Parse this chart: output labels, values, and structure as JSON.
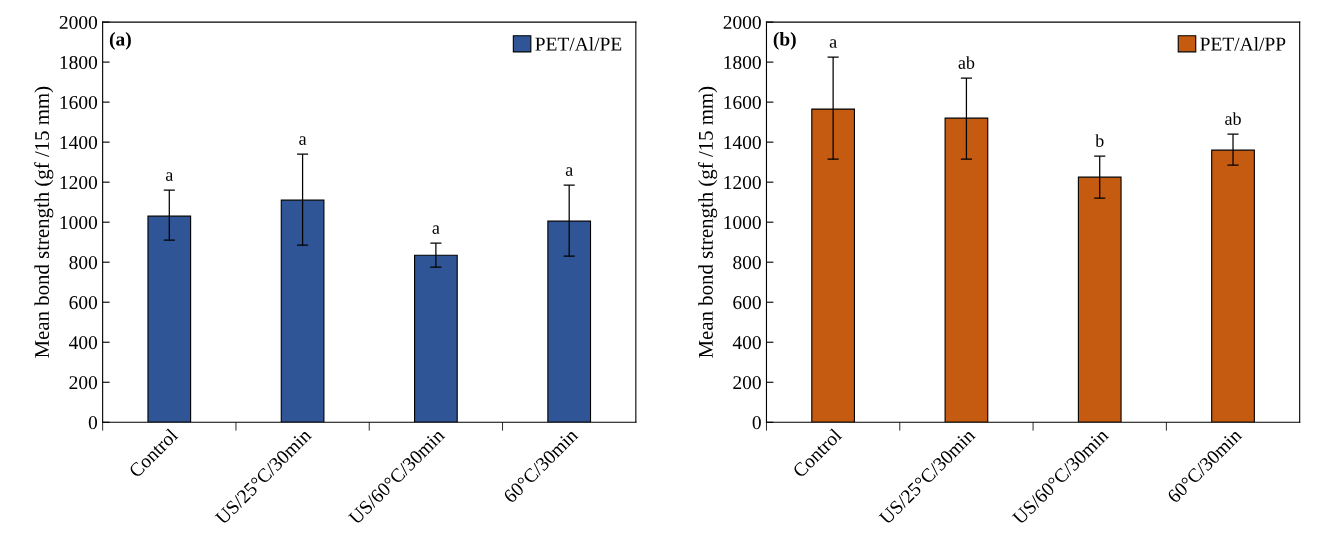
{
  "chart_data": [
    {
      "type": "bar",
      "ylabel": "Mean bond strength (gf /15 mm)",
      "categories": [
        "Control",
        "US/25°C/30min",
        "US/60°C/30min",
        "60°C/30min"
      ],
      "series": [
        {
          "name": "PET/Al/PE",
          "color": "#2f5597",
          "values": [
            1030,
            1110,
            835,
            1005
          ],
          "errors": [
            [
              910,
              1160
            ],
            [
              885,
              1340
            ],
            [
              775,
              895
            ],
            [
              830,
              1185
            ]
          ]
        }
      ],
      "ylim": [
        0,
        2000
      ],
      "yticks": [
        0,
        200,
        400,
        600,
        800,
        1000,
        1200,
        1400,
        1600,
        1800,
        2000
      ],
      "grid": false,
      "legend": "top right",
      "annotations": [
        "(a)",
        {
          "text": "a",
          "x": "Control",
          "y": 1160
        },
        {
          "text": "a",
          "x": "US/25°C/30min",
          "y": 1340
        },
        {
          "text": "a",
          "x": "US/60°C/30min",
          "y": 895
        },
        {
          "text": "a",
          "x": "60°C/30min",
          "y": 1185
        }
      ]
    },
    {
      "type": "bar",
      "ylabel": "Mean bond strength (gf /15 mm)",
      "categories": [
        "Control",
        "US/25°C/30min",
        "US/60°C/30min",
        "60°C/30min"
      ],
      "series": [
        {
          "name": "PET/Al/PP",
          "color": "#c55a11",
          "values": [
            1565,
            1520,
            1225,
            1360
          ],
          "errors": [
            [
              1315,
              1825
            ],
            [
              1315,
              1720
            ],
            [
              1120,
              1330
            ],
            [
              1285,
              1440
            ]
          ]
        }
      ],
      "ylim": [
        0,
        2000
      ],
      "yticks": [
        0,
        200,
        400,
        600,
        800,
        1000,
        1200,
        1400,
        1600,
        1800,
        2000
      ],
      "grid": false,
      "legend": "top right",
      "annotations": [
        "(b)",
        {
          "text": "a",
          "x": "Control",
          "y": 1825
        },
        {
          "text": "ab",
          "x": "US/25°C/30min",
          "y": 1720
        },
        {
          "text": "b",
          "x": "US/60°C/30min",
          "y": 1330
        },
        {
          "text": "ab",
          "x": "60°C/30min",
          "y": 1440
        }
      ]
    }
  ]
}
